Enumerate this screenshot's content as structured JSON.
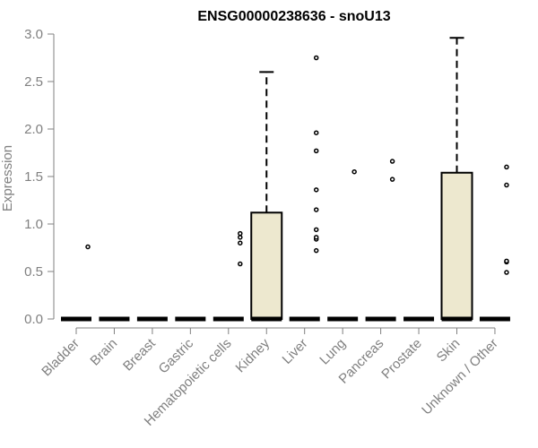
{
  "chart_data": {
    "type": "box",
    "title": "ENSG00000238636 - snoU13",
    "ylabel": "Expression",
    "xlabel": "",
    "ylim": [
      0,
      3.0
    ],
    "yticks": [
      "0.0",
      "0.5",
      "1.0",
      "1.5",
      "2.0",
      "2.5",
      "3.0"
    ],
    "categories": [
      "Bladder",
      "Brain",
      "Breast",
      "Gastric",
      "Hematopoietic cells",
      "Kidney",
      "Liver",
      "Lung",
      "Pancreas",
      "Prostate",
      "Skin",
      "Unknown / Other"
    ],
    "boxes": [
      {
        "q1": 0,
        "median": 0,
        "q3": 0,
        "whisker_low": 0,
        "whisker_high": 0,
        "outliers": [
          0.76
        ]
      },
      {
        "q1": 0,
        "median": 0,
        "q3": 0,
        "whisker_low": 0,
        "whisker_high": 0,
        "outliers": []
      },
      {
        "q1": 0,
        "median": 0,
        "q3": 0,
        "whisker_low": 0,
        "whisker_high": 0,
        "outliers": []
      },
      {
        "q1": 0,
        "median": 0,
        "q3": 0,
        "whisker_low": 0,
        "whisker_high": 0,
        "outliers": []
      },
      {
        "q1": 0,
        "median": 0,
        "q3": 0,
        "whisker_low": 0,
        "whisker_high": 0,
        "outliers": [
          0.58,
          0.8,
          0.86,
          0.9
        ]
      },
      {
        "q1": 0,
        "median": 0,
        "q3": 1.12,
        "whisker_low": 0,
        "whisker_high": 2.6,
        "outliers": []
      },
      {
        "q1": 0,
        "median": 0,
        "q3": 0,
        "whisker_low": 0,
        "whisker_high": 0,
        "outliers": [
          0.72,
          0.84,
          0.86,
          0.94,
          1.15,
          1.36,
          1.77,
          1.96,
          2.75
        ]
      },
      {
        "q1": 0,
        "median": 0,
        "q3": 0,
        "whisker_low": 0,
        "whisker_high": 0,
        "outliers": [
          1.55
        ]
      },
      {
        "q1": 0,
        "median": 0,
        "q3": 0,
        "whisker_low": 0,
        "whisker_high": 0,
        "outliers": [
          1.47,
          1.66
        ]
      },
      {
        "q1": 0,
        "median": 0,
        "q3": 0,
        "whisker_low": 0,
        "whisker_high": 0,
        "outliers": []
      },
      {
        "q1": 0,
        "median": 0,
        "q3": 1.54,
        "whisker_low": 0,
        "whisker_high": 2.96,
        "outliers": []
      },
      {
        "q1": 0,
        "median": 0,
        "q3": 0,
        "whisker_low": 0,
        "whisker_high": 0,
        "outliers": [
          0.49,
          0.6,
          0.61,
          1.41,
          1.6
        ]
      }
    ],
    "grid": false,
    "legend": "none",
    "colors": {
      "box_fill": "#ede8cf",
      "stroke": "#000000",
      "axis": "#808080"
    }
  }
}
